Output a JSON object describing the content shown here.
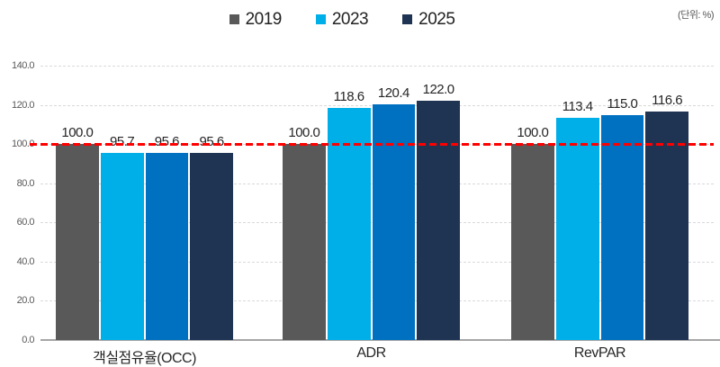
{
  "chart_data": {
    "type": "bar",
    "title": "",
    "unit_label": "(단위: %)",
    "categories": [
      "객실점유율(OCC)",
      "ADR",
      "RevPAR"
    ],
    "legend": [
      {
        "label": "2019",
        "color": "#595959"
      },
      {
        "label": "2023",
        "color": "#00aee8"
      },
      {
        "label": "2025",
        "color": "#1f3353"
      }
    ],
    "series": [
      {
        "name": "2019",
        "color": "#595959",
        "values": [
          100.0,
          100.0,
          100.0
        ],
        "labels": [
          "100.0",
          "100.0",
          "100.0"
        ]
      },
      {
        "name": "2023",
        "color": "#00aee8",
        "values": [
          95.7,
          118.6,
          113.4
        ],
        "labels": [
          "95.7",
          "118.6",
          "113.4"
        ]
      },
      {
        "name": "",
        "color": "#0070c0",
        "values": [
          95.6,
          120.4,
          115.0
        ],
        "labels": [
          "95.6",
          "120.4",
          "115.0"
        ]
      },
      {
        "name": "2025",
        "color": "#1f3353",
        "values": [
          95.6,
          122.0,
          116.6
        ],
        "labels": [
          "95.6",
          "122.0",
          "116.6"
        ]
      }
    ],
    "y_ticks": [
      "0.0",
      "20.0",
      "40.0",
      "60.0",
      "80.0",
      "100.0",
      "120.0",
      "140.0"
    ],
    "ylim": [
      0,
      140
    ],
    "grid": "dashed-horizontal",
    "legend_position": "top-center",
    "reference_line": {
      "value": 100,
      "color": "#ff0000",
      "style": "dashed"
    },
    "colors": {
      "gridline": "#d9d9d9",
      "axis_line": "#a6a6a6",
      "tick_text": "#595959",
      "label_text": "#262626"
    }
  }
}
